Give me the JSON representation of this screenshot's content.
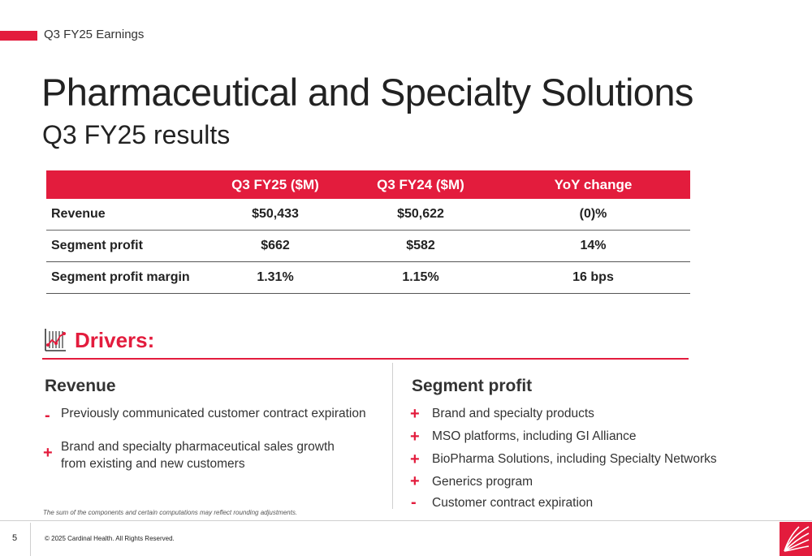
{
  "header": {
    "eyebrow": "Q3 FY25 Earnings",
    "title": "Pharmaceutical and Specialty Solutions",
    "subtitle": "Q3 FY25 results"
  },
  "table": {
    "columns": [
      "",
      "Q3 FY25 ($M)",
      "Q3 FY24 ($M)",
      "YoY change"
    ],
    "rows": [
      {
        "label": "Revenue",
        "fy25": "$50,433",
        "fy24": "$50,622",
        "yoy": "(0)%"
      },
      {
        "label": "Segment profit",
        "fy25": "$662",
        "fy24": "$582",
        "yoy": "14%"
      },
      {
        "label": "Segment profit margin",
        "fy25": "1.31%",
        "fy24": "1.15%",
        "yoy": "16 bps"
      }
    ]
  },
  "drivers": {
    "title": "Drivers:",
    "icon": "chart-analysis-icon",
    "revenue": {
      "heading": "Revenue",
      "items": [
        {
          "sign": "-",
          "text": "Previously communicated customer contract expiration"
        },
        {
          "sign": "+",
          "line1": "Brand and specialty pharmaceutical sales growth",
          "line2": "from existing and new customers"
        }
      ]
    },
    "segment_profit": {
      "heading": "Segment profit",
      "items": [
        {
          "sign": "+",
          "text": "Brand and specialty products"
        },
        {
          "sign": "+",
          "text": "MSO platforms, including GI Alliance"
        },
        {
          "sign": "+",
          "text": "BioPharma Solutions, including Specialty Networks"
        },
        {
          "sign": "+",
          "text": "Generics program"
        },
        {
          "sign": "-",
          "text": "Customer contract expiration"
        }
      ]
    }
  },
  "footer": {
    "footnote": "The sum of the components and certain computations may reflect rounding adjustments.",
    "page_number": "5",
    "copyright": "© 2025 Cardinal Health. All Rights Reserved.",
    "logo_icon": "cardinal-health-logo-icon"
  },
  "colors": {
    "accent": "#e31c3d",
    "text": "#222222",
    "divider": "#cfcfcf"
  }
}
